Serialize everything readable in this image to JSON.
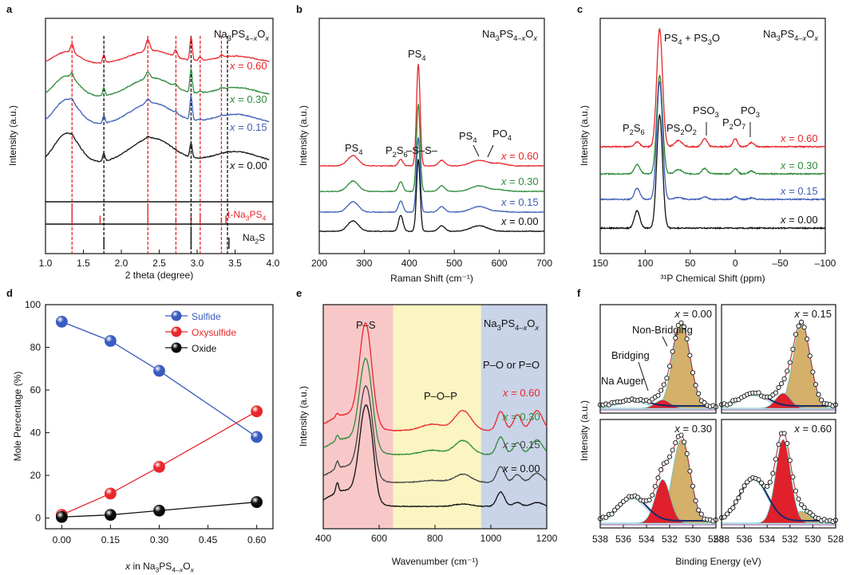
{
  "figure": {
    "panel_letters": [
      "a",
      "b",
      "c",
      "d",
      "e",
      "f"
    ]
  },
  "chart_data": [
    {
      "panel": "a",
      "type": "line",
      "title": "Na3PS4−xOx",
      "xlabel": "2 theta (degree)",
      "ylabel": "Intensity (a.u.)",
      "xlim": [
        1.0,
        4.0
      ],
      "xticks": [
        "1.0",
        "1.5",
        "2.0",
        "2.5",
        "3.0",
        "3.5",
        "4.0"
      ],
      "series": [
        {
          "name": "x = 0.60",
          "color": "#e8272b",
          "offset": 0.6
        },
        {
          "name": "x = 0.30",
          "color": "#2e8b3a",
          "offset": 0.3
        },
        {
          "name": "x = 0.15",
          "color": "#3f5fb5",
          "offset": 0.15
        },
        {
          "name": "x = 0.00",
          "color": "#111111",
          "offset": 0.0
        }
      ],
      "references": [
        {
          "name": "t-Na3PS4",
          "color": "#e8272b",
          "peaks": [
            1.35,
            1.72,
            2.35,
            2.72,
            2.92,
            3.04,
            3.32,
            3.38
          ]
        },
        {
          "name": "Na2S",
          "color": "#111111",
          "peaks": [
            1.77,
            2.92,
            3.42
          ]
        }
      ],
      "sample_peaks_red": [
        1.35,
        2.35,
        2.72,
        3.04,
        3.32
      ],
      "sample_peaks_black": [
        1.77,
        2.92,
        3.4
      ]
    },
    {
      "panel": "b",
      "type": "line",
      "title": "Na3PS4−xOx",
      "xlabel": "Raman Shift (cm⁻¹)",
      "ylabel": "Intensity (a.u.)",
      "xlim": [
        200,
        700
      ],
      "xticks": [
        "200",
        "300",
        "400",
        "500",
        "600",
        "700"
      ],
      "series": [
        {
          "name": "x = 0.60",
          "color": "#e8272b"
        },
        {
          "name": "x = 0.30",
          "color": "#2e8b3a"
        },
        {
          "name": "x = 0.15",
          "color": "#3f5fb5"
        },
        {
          "name": "x = 0.00",
          "color": "#111111"
        }
      ],
      "peaks": [
        {
          "label": "PS4",
          "pos": 275
        },
        {
          "label": "P2S6",
          "pos": 381
        },
        {
          "label": "PS4",
          "pos": 420
        },
        {
          "label": "–S–S–",
          "pos": 472
        },
        {
          "label": "PS4",
          "pos": 552
        },
        {
          "label": "PO4",
          "pos": 590
        }
      ]
    },
    {
      "panel": "c",
      "type": "line",
      "title": "Na3PS4−xOx",
      "xlabel": "³¹P Chemical Shift (ppm)",
      "ylabel": "Intensity (a.u.)",
      "xlim": [
        150,
        -100
      ],
      "xticks": [
        "150",
        "100",
        "50",
        "0",
        "–50",
        "–100"
      ],
      "series": [
        {
          "name": "x = 0.60",
          "color": "#e8272b"
        },
        {
          "name": "x = 0.30",
          "color": "#2e8b3a"
        },
        {
          "name": "x = 0.15",
          "color": "#3f5fb5"
        },
        {
          "name": "x = 0.00",
          "color": "#111111"
        }
      ],
      "peaks": [
        {
          "label": "P2S6",
          "pos": 109
        },
        {
          "label": "PS4 + PS3O",
          "pos": 84
        },
        {
          "label": "PS2O2",
          "pos": 63
        },
        {
          "label": "PSO3",
          "pos": 34
        },
        {
          "label": "P2O7",
          "pos": 0
        },
        {
          "label": "PO3",
          "pos": -18
        }
      ]
    },
    {
      "panel": "d",
      "type": "line",
      "xlabel": "x in Na3PS4−xOx",
      "ylabel": "Mole Percentage (%)",
      "xlim": [
        -0.05,
        0.65
      ],
      "ylim": [
        -5,
        100
      ],
      "x": [
        0.0,
        0.15,
        0.3,
        0.6
      ],
      "xticks": [
        "0.00",
        "0.15",
        "0.30",
        "0.45",
        "0.60"
      ],
      "yticks": [
        "0",
        "20",
        "40",
        "60",
        "80",
        "100"
      ],
      "series": [
        {
          "name": "Sulfide",
          "color": "#3a5bbf",
          "values": [
            92,
            83,
            69,
            38
          ]
        },
        {
          "name": "Oxysulfide",
          "color": "#e8272b",
          "values": [
            1.5,
            11.5,
            24,
            50
          ]
        },
        {
          "name": "Oxide",
          "color": "#111111",
          "values": [
            0.5,
            1.5,
            3.5,
            7.5
          ]
        }
      ]
    },
    {
      "panel": "e",
      "type": "line",
      "title": "Na3PS4−xOx",
      "xlabel": "Wavenumber (cm⁻¹)",
      "ylabel": "Intensity (a.u.)",
      "xlim": [
        400,
        1200
      ],
      "xticks": [
        "400",
        "600",
        "800",
        "1000",
        "1200"
      ],
      "regions": [
        {
          "label": "P–S",
          "from": 400,
          "to": 650,
          "color": "#f8c8c8"
        },
        {
          "label": "P–O–P",
          "from": 650,
          "to": 965,
          "color": "#fbf5c2"
        },
        {
          "label": "P–O or P=O",
          "from": 965,
          "to": 1200,
          "color": "#c9d4e8"
        }
      ],
      "series": [
        {
          "name": "x = 0.60",
          "color": "#e8272b"
        },
        {
          "name": "x = 0.30",
          "color": "#2e8b3a"
        },
        {
          "name": "x = 0.15",
          "color": "#444444"
        },
        {
          "name": "x = 0.00",
          "color": "#111111"
        }
      ]
    },
    {
      "panel": "f",
      "type": "line",
      "xlabel": "Binding Energy (eV)",
      "ylabel": "Intensity (a.u.)",
      "xlim": [
        538,
        528
      ],
      "xticks": [
        "538",
        "536",
        "534",
        "532",
        "530",
        "528"
      ],
      "subplots": [
        {
          "name": "x = 0.00",
          "nonbridging": 100,
          "bridging": 10,
          "auger": 8
        },
        {
          "name": "x = 0.15",
          "nonbridging": 100,
          "bridging": 18,
          "auger": 15
        },
        {
          "name": "x = 0.30",
          "nonbridging": 100,
          "bridging": 52,
          "auger": 28
        },
        {
          "name": "x = 0.60",
          "nonbridging": 14,
          "bridging": 100,
          "auger": 50
        }
      ],
      "labels": [
        "Non-Bridging",
        "Bridging",
        "Na Auger"
      ]
    }
  ]
}
